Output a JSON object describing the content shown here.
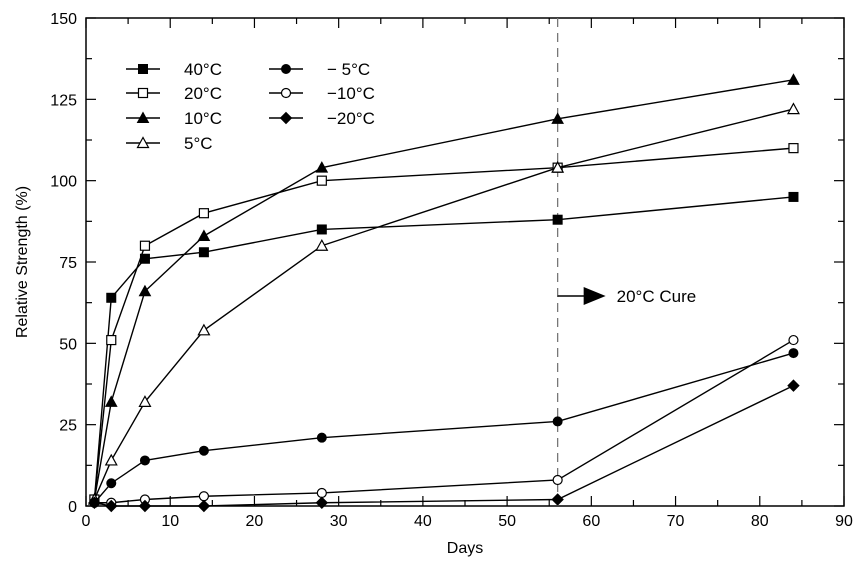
{
  "chart_data": {
    "type": "line",
    "title": "",
    "xlabel": "Days",
    "ylabel": "Relative Strength (%)",
    "xlim": [
      0,
      90
    ],
    "ylim": [
      0,
      150
    ],
    "x_ticks": [
      0,
      10,
      20,
      30,
      40,
      50,
      60,
      70,
      80,
      90
    ],
    "y_ticks": [
      0,
      25,
      50,
      75,
      100,
      125,
      150
    ],
    "grid": false,
    "legend_placement": "top-left",
    "series": [
      {
        "name": "40°C",
        "marker": "filled-square",
        "x": [
          1,
          3,
          7,
          14,
          28,
          56,
          84
        ],
        "y": [
          2,
          64,
          76,
          78,
          85,
          88,
          95
        ]
      },
      {
        "name": "20°C",
        "marker": "open-square",
        "x": [
          1,
          3,
          7,
          14,
          28,
          56,
          84
        ],
        "y": [
          2,
          51,
          80,
          90,
          100,
          104,
          110
        ]
      },
      {
        "name": "10°C",
        "marker": "filled-triangle",
        "x": [
          1,
          3,
          7,
          14,
          28,
          56,
          84
        ],
        "y": [
          2,
          32,
          66,
          83,
          104,
          119,
          131
        ]
      },
      {
        "name": "5°C",
        "marker": "open-triangle",
        "x": [
          1,
          3,
          7,
          14,
          28,
          56,
          84
        ],
        "y": [
          2,
          14,
          32,
          54,
          80,
          104,
          122
        ]
      },
      {
        "name": "− 5°C",
        "marker": "filled-circle",
        "x": [
          1,
          3,
          7,
          14,
          28,
          56,
          84
        ],
        "y": [
          1,
          7,
          14,
          17,
          21,
          26,
          47
        ]
      },
      {
        "name": "−10°C",
        "marker": "open-circle",
        "x": [
          1,
          3,
          7,
          14,
          28,
          56,
          84
        ],
        "y": [
          1,
          1,
          2,
          3,
          4,
          8,
          51
        ]
      },
      {
        "name": "−20°C",
        "marker": "filled-diamond",
        "x": [
          1,
          3,
          7,
          14,
          28,
          56,
          84
        ],
        "y": [
          1,
          0,
          0,
          0,
          1,
          2,
          37
        ]
      }
    ],
    "annotations": [
      {
        "text": "20°C Cure",
        "type": "vertical-dashed-line",
        "x": 56,
        "arrow": "right"
      }
    ]
  }
}
